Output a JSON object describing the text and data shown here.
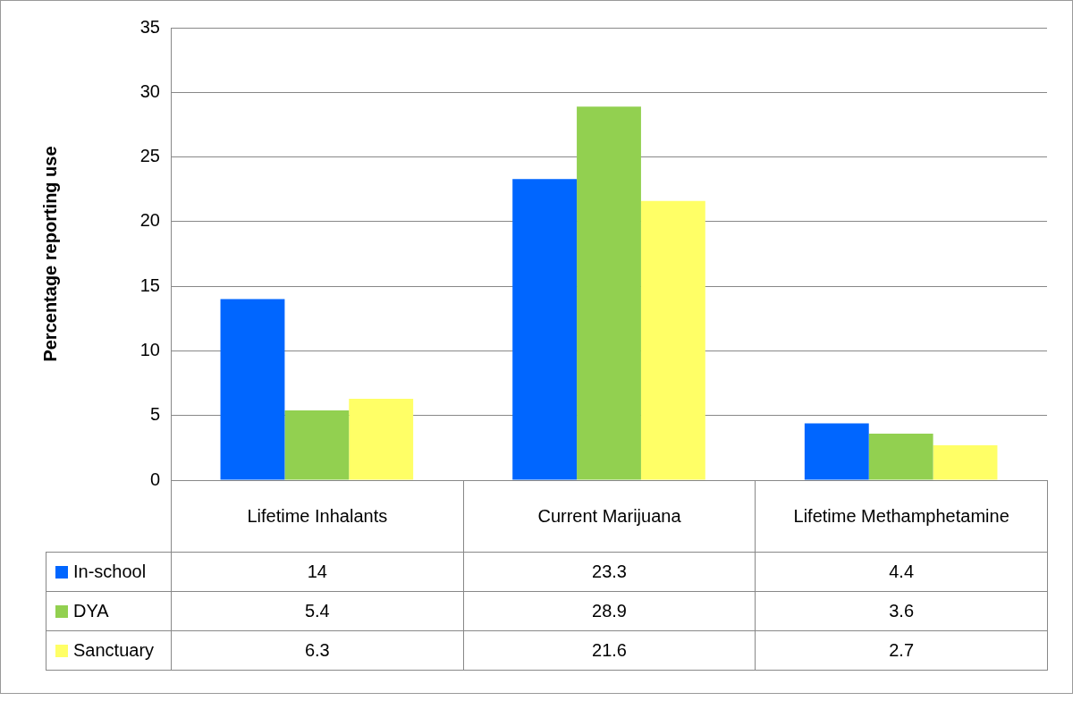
{
  "chart_data": {
    "type": "bar",
    "ylabel": "Percentage reporting use",
    "categories": [
      "Lifetime Inhalants",
      "Current Marijuana",
      "Lifetime Methamphetamine"
    ],
    "series": [
      {
        "name": "In-school",
        "color": "#0066ff",
        "values": [
          14,
          23.3,
          4.4
        ]
      },
      {
        "name": "DYA",
        "color": "#92d050",
        "values": [
          5.4,
          28.9,
          3.6
        ]
      },
      {
        "name": "Sanctuary",
        "color": "#ffff66",
        "values": [
          6.3,
          21.6,
          2.7
        ]
      }
    ],
    "ylim": [
      0,
      35
    ],
    "yticks": [
      0,
      5,
      10,
      15,
      20,
      25,
      30,
      35
    ],
    "grid": "y",
    "legend": "bottom",
    "data_labels": true
  }
}
